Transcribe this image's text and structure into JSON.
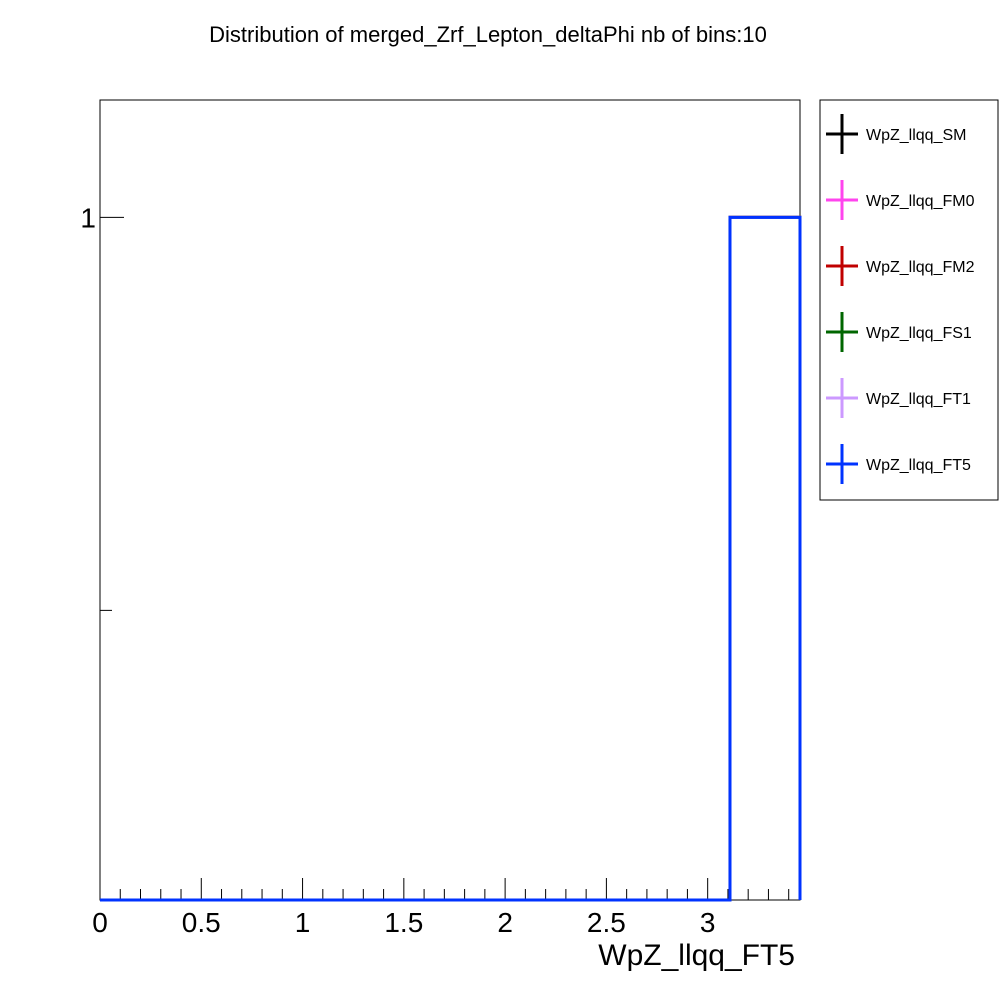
{
  "chart_data": {
    "type": "histogram",
    "title": "Distribution of merged_Zrf_Lepton_deltaPhi nb of bins:10",
    "xlabel": "WpZ_llqq_FT5",
    "ylabel": "",
    "xlim": [
      0,
      3.4558
    ],
    "y_scale": "log",
    "ylim": [
      0.3,
      1.23
    ],
    "x_ticks": [
      0,
      0.5,
      1,
      1.5,
      2,
      2.5,
      3
    ],
    "x_tick_labels": [
      "0",
      "0.5",
      "1",
      "1.5",
      "2",
      "2.5",
      "3"
    ],
    "y_ticks": [
      1
    ],
    "y_tick_labels": [
      "1"
    ],
    "bin_edges": [
      0,
      0.3456,
      0.6912,
      1.0367,
      1.3823,
      1.7279,
      2.0735,
      2.4191,
      2.7646,
      3.1102,
      3.4558
    ],
    "series": [
      {
        "name": "WpZ_llqq_SM",
        "color": "#000000",
        "values": [
          0,
          0,
          0,
          0,
          0,
          0,
          0,
          0,
          0,
          1
        ]
      },
      {
        "name": "WpZ_llqq_FM0",
        "color": "#ff44ee",
        "values": [
          0,
          0,
          0,
          0,
          0,
          0,
          0,
          0,
          0,
          1
        ]
      },
      {
        "name": "WpZ_llqq_FM2",
        "color": "#c00000",
        "values": [
          0,
          0,
          0,
          0,
          0,
          0,
          0,
          0,
          0,
          1
        ]
      },
      {
        "name": "WpZ_llqq_FS1",
        "color": "#006600",
        "values": [
          0,
          0,
          0,
          0,
          0,
          0,
          0,
          0,
          0,
          1
        ]
      },
      {
        "name": "WpZ_llqq_FT1",
        "color": "#cc99ff",
        "values": [
          0,
          0,
          0,
          0,
          0,
          0,
          0,
          0,
          0,
          1
        ]
      },
      {
        "name": "WpZ_llqq_FT5",
        "color": "#0033ff",
        "values": [
          0,
          0,
          0,
          0,
          0,
          0,
          0,
          0,
          0,
          1
        ]
      }
    ],
    "legend_position": "right",
    "grid": false
  }
}
